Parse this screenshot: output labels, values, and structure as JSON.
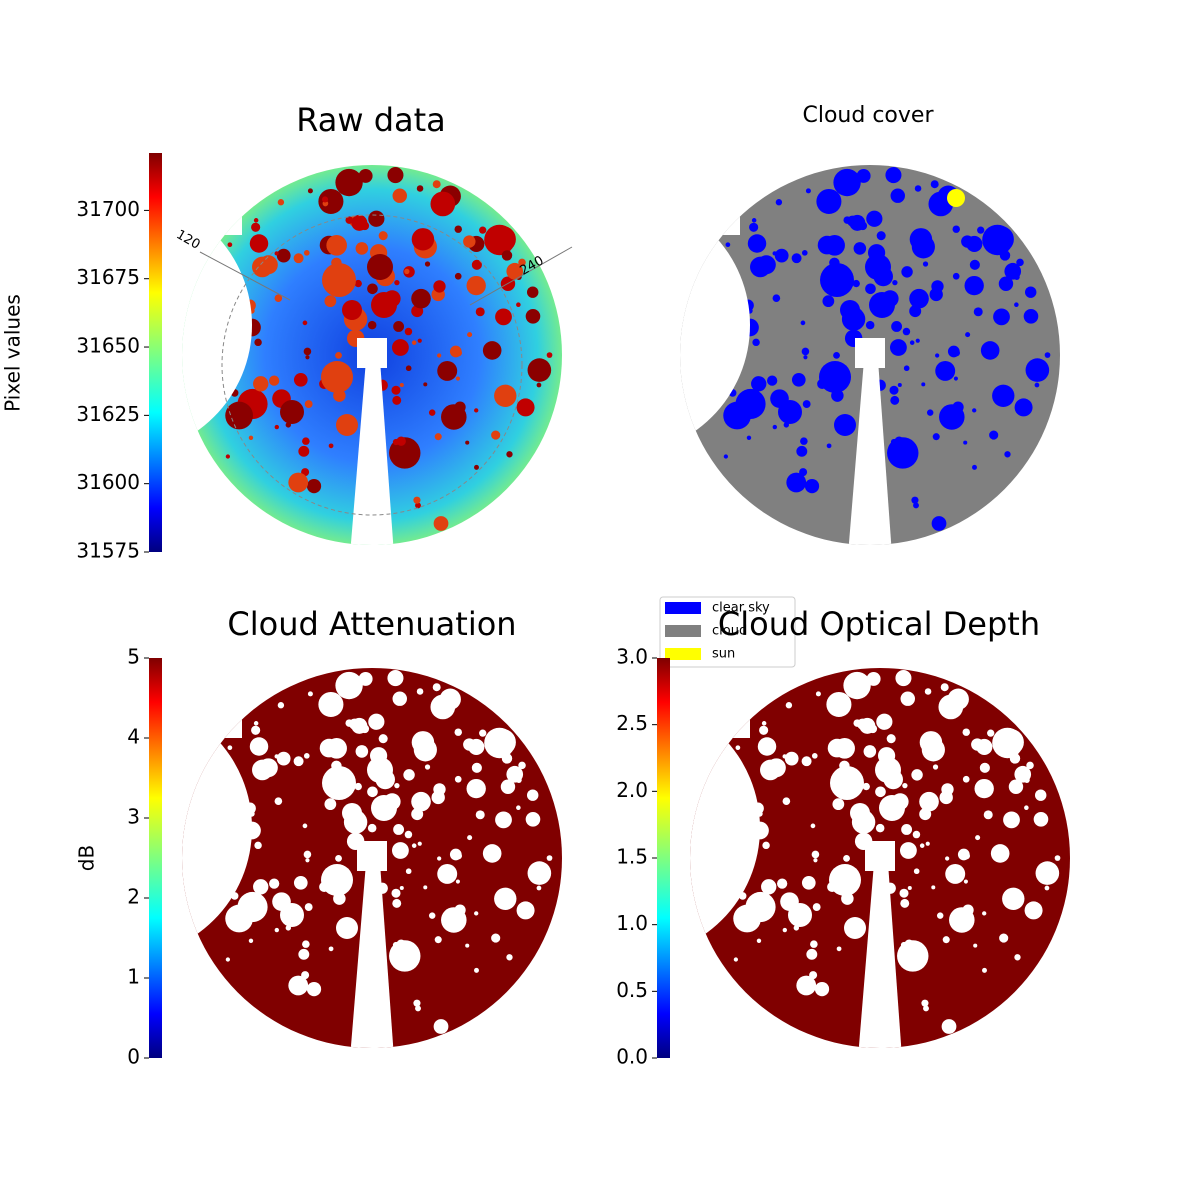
{
  "chart_data": [
    {
      "type": "image",
      "title": "Raw data",
      "colorbar_label": "Pixel values",
      "clim": [
        31575,
        31721
      ],
      "cticks": [
        31575,
        31600,
        31625,
        31650,
        31675,
        31700
      ],
      "cmap": "jet",
      "annotations": [
        "120",
        "240"
      ]
    },
    {
      "type": "image",
      "title": "Cloud cover",
      "legend": [
        {
          "name": "clear sky",
          "color": "#0000ff"
        },
        {
          "name": "cloud",
          "color": "#808080"
        },
        {
          "name": "sun",
          "color": "#ffff00"
        }
      ]
    },
    {
      "type": "image",
      "title": "Cloud Attenuation",
      "colorbar_label": "dB",
      "clim": [
        0,
        5
      ],
      "cticks": [
        0,
        1,
        2,
        3,
        4,
        5
      ],
      "cmap": "jet"
    },
    {
      "type": "image",
      "title": "Cloud Optical Depth",
      "clim": [
        0,
        3
      ],
      "cticks": [
        {
          "value": 0,
          "label": "0.0"
        },
        0.5,
        {
          "value": 1,
          "label": "1.0"
        },
        1.5,
        {
          "value": 2,
          "label": "2.0"
        },
        2.5,
        {
          "value": 3,
          "label": "3.0"
        }
      ],
      "cmap": "jet"
    }
  ]
}
